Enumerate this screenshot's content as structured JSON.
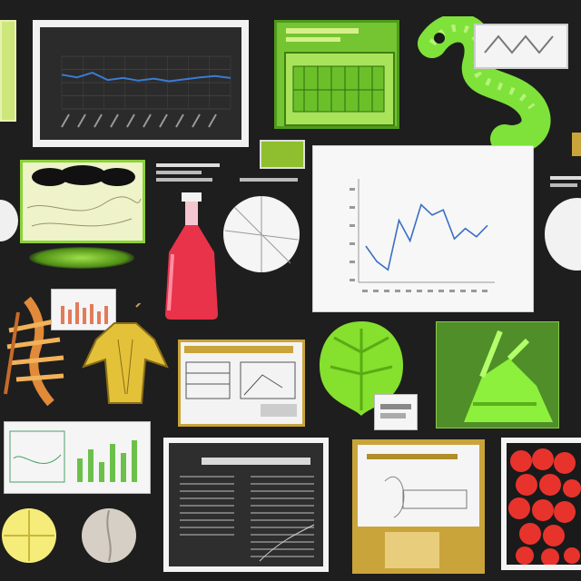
{
  "board": {
    "background": "#1e1e1e",
    "accent_green": "#7bd62a",
    "accent_red": "#e8334a",
    "accent_gold": "#c9a43b"
  },
  "tiles": {
    "top_left_chart": {
      "title": ""
    },
    "green_box": {
      "title": ""
    },
    "center_chart": {
      "title": "",
      "xlabel": "",
      "ylabel": ""
    }
  },
  "chart_data": [
    {
      "type": "line",
      "title": "",
      "series": [
        {
          "values": [
            52,
            48,
            55,
            44,
            47,
            43,
            46,
            42,
            45,
            48,
            50,
            47
          ]
        }
      ],
      "ylim": [
        0,
        80
      ],
      "grid": true
    },
    {
      "type": "line",
      "title": "",
      "xlabel": "",
      "ylabel": "",
      "series": [
        {
          "values": [
            35,
            20,
            12,
            60,
            40,
            75,
            65,
            70,
            42,
            52,
            44,
            55
          ]
        }
      ],
      "ylim": [
        0,
        100
      ],
      "grid": false
    }
  ],
  "icons": [
    "flask-icon",
    "leaf-icon",
    "skeleton-icon",
    "dress-icon",
    "tree-icon",
    "caterpillar-icon"
  ]
}
